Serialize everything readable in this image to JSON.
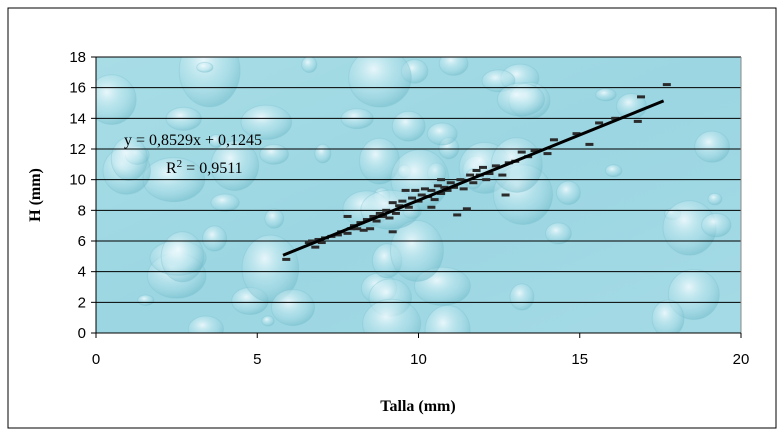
{
  "chart_data": {
    "type": "scatter",
    "xlabel": "Talla (mm)",
    "ylabel": "H (mm)",
    "xlim": [
      0,
      20
    ],
    "ylim": [
      0,
      18
    ],
    "x_ticks": [
      "0",
      "5",
      "10",
      "15",
      "20"
    ],
    "y_ticks": [
      "0",
      "2",
      "4",
      "6",
      "8",
      "10",
      "12",
      "14",
      "16",
      "18"
    ],
    "grid": "horizontal",
    "plot_background": "light blue water-drop texture",
    "marker_color": "#2b2b2b",
    "trendline": {
      "slope": 0.8529,
      "intercept": 0.1245,
      "x_range": [
        5.8,
        17.6
      ],
      "equation": "y = 0,8529x + 0,1245",
      "r2_prefix": "R",
      "r2_sup": "2",
      "r2_suffix": " = 0,9511"
    },
    "points": [
      [
        5.9,
        4.8
      ],
      [
        6.6,
        5.9
      ],
      [
        6.7,
        6.0
      ],
      [
        6.8,
        5.6
      ],
      [
        6.9,
        6.1
      ],
      [
        7.0,
        5.9
      ],
      [
        7.1,
        6.2
      ],
      [
        7.3,
        6.3
      ],
      [
        7.5,
        6.4
      ],
      [
        7.6,
        6.6
      ],
      [
        7.8,
        6.5
      ],
      [
        7.8,
        7.6
      ],
      [
        7.9,
        6.8
      ],
      [
        8.0,
        7.0
      ],
      [
        8.1,
        6.8
      ],
      [
        8.2,
        7.2
      ],
      [
        8.3,
        6.7
      ],
      [
        8.4,
        7.4
      ],
      [
        8.5,
        6.8
      ],
      [
        8.6,
        7.6
      ],
      [
        8.7,
        7.3
      ],
      [
        8.8,
        7.8
      ],
      [
        8.9,
        7.6
      ],
      [
        9.0,
        8.0
      ],
      [
        9.1,
        7.5
      ],
      [
        9.2,
        8.5
      ],
      [
        9.2,
        6.6
      ],
      [
        9.3,
        7.8
      ],
      [
        9.4,
        8.3
      ],
      [
        9.5,
        8.6
      ],
      [
        9.6,
        9.3
      ],
      [
        9.7,
        8.2
      ],
      [
        9.8,
        8.8
      ],
      [
        9.9,
        9.3
      ],
      [
        10.0,
        8.6
      ],
      [
        10.1,
        9.0
      ],
      [
        10.2,
        9.4
      ],
      [
        10.3,
        8.9
      ],
      [
        10.4,
        9.3
      ],
      [
        10.4,
        8.2
      ],
      [
        10.5,
        8.7
      ],
      [
        10.6,
        9.6
      ],
      [
        10.7,
        9.1
      ],
      [
        10.7,
        10.0
      ],
      [
        10.8,
        9.5
      ],
      [
        10.9,
        9.3
      ],
      [
        11.0,
        9.8
      ],
      [
        11.1,
        9.5
      ],
      [
        11.2,
        7.7
      ],
      [
        11.3,
        10.0
      ],
      [
        11.4,
        9.4
      ],
      [
        11.5,
        8.1
      ],
      [
        11.6,
        10.3
      ],
      [
        11.7,
        9.8
      ],
      [
        11.8,
        10.6
      ],
      [
        11.9,
        10.3
      ],
      [
        12.0,
        10.8
      ],
      [
        12.1,
        10.0
      ],
      [
        12.2,
        10.4
      ],
      [
        12.4,
        10.9
      ],
      [
        12.6,
        10.3
      ],
      [
        12.7,
        9.0
      ],
      [
        12.8,
        11.1
      ],
      [
        13.0,
        11.2
      ],
      [
        13.2,
        11.8
      ],
      [
        13.4,
        11.5
      ],
      [
        13.6,
        11.9
      ],
      [
        14.0,
        11.7
      ],
      [
        14.2,
        12.6
      ],
      [
        14.9,
        13.0
      ],
      [
        15.3,
        12.3
      ],
      [
        15.6,
        13.7
      ],
      [
        16.1,
        14.0
      ],
      [
        16.8,
        13.8
      ],
      [
        16.9,
        15.4
      ],
      [
        17.7,
        16.2
      ]
    ]
  }
}
